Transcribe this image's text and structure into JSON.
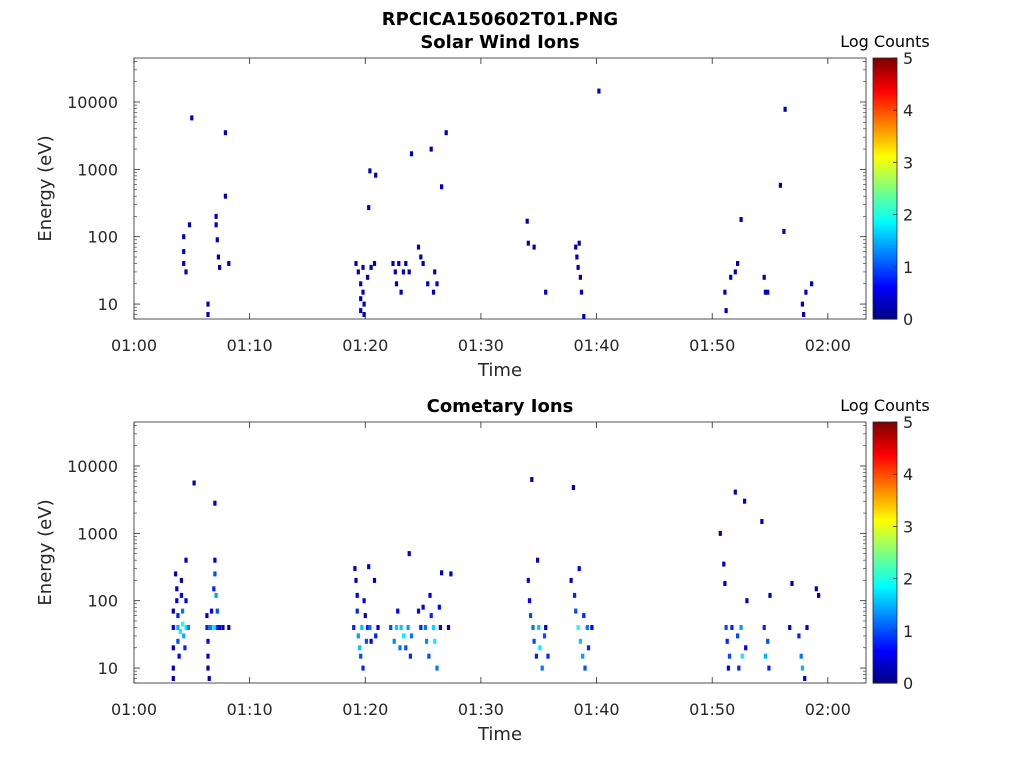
{
  "figure_title": "RPCICA150602T01.PNG",
  "colorscale": [
    "#00007f",
    "#0000ff",
    "#007fff",
    "#00ffff",
    "#7fff7f",
    "#ffff00",
    "#ff7f00",
    "#ff0000",
    "#7f0000"
  ],
  "chart_data": [
    {
      "type": "heatmap",
      "title": "Solar Wind Ions",
      "xlabel": "Time",
      "ylabel": "Energy (eV)",
      "x_ticks": [
        "01:00",
        "01:10",
        "01:20",
        "01:30",
        "01:40",
        "01:50",
        "02:00"
      ],
      "x_range_min": [
        0,
        63.3
      ],
      "y_scale": "log",
      "y_ticks": [
        10,
        100,
        1000,
        10000
      ],
      "y_range": [
        6,
        45000
      ],
      "colorbar": {
        "label": "Log Counts",
        "range": [
          0,
          5
        ],
        "ticks": [
          0,
          1,
          2,
          3,
          4,
          5
        ]
      },
      "points": [
        [
          4.3,
          100,
          0.3
        ],
        [
          4.3,
          60,
          0.3
        ],
        [
          4.3,
          40,
          0.3
        ],
        [
          4.5,
          30,
          0.3
        ],
        [
          4.8,
          150,
          0.3
        ],
        [
          5.0,
          5800,
          0.3
        ],
        [
          6.4,
          10,
          0.3
        ],
        [
          6.4,
          7,
          0.3
        ],
        [
          7.1,
          200,
          0.3
        ],
        [
          7.1,
          150,
          0.3
        ],
        [
          7.2,
          90,
          0.3
        ],
        [
          7.3,
          50,
          0.3
        ],
        [
          7.4,
          35,
          0.3
        ],
        [
          7.9,
          400,
          0.3
        ],
        [
          7.9,
          3500,
          0.3
        ],
        [
          8.2,
          40,
          0.3
        ],
        [
          19.2,
          40,
          0.3
        ],
        [
          19.4,
          30,
          0.3
        ],
        [
          19.6,
          20,
          0.3
        ],
        [
          19.6,
          12,
          0.3
        ],
        [
          19.6,
          8,
          0.3
        ],
        [
          19.8,
          35,
          0.3
        ],
        [
          19.8,
          15,
          0.3
        ],
        [
          19.9,
          10,
          0.3
        ],
        [
          19.9,
          7,
          0.3
        ],
        [
          20.2,
          25,
          0.3
        ],
        [
          20.3,
          270,
          0.3
        ],
        [
          20.4,
          950,
          0.3
        ],
        [
          20.5,
          35,
          0.3
        ],
        [
          20.8,
          40,
          0.3
        ],
        [
          20.9,
          820,
          0.3
        ],
        [
          22.4,
          40,
          0.3
        ],
        [
          22.6,
          30,
          0.3
        ],
        [
          22.7,
          20,
          0.3
        ],
        [
          22.9,
          40,
          0.3
        ],
        [
          23.1,
          15,
          0.3
        ],
        [
          23.3,
          30,
          0.3
        ],
        [
          23.5,
          40,
          0.3
        ],
        [
          23.8,
          30,
          0.3
        ],
        [
          24.0,
          1700,
          0.3
        ],
        [
          24.6,
          70,
          0.3
        ],
        [
          24.8,
          50,
          0.3
        ],
        [
          25.0,
          40,
          0.3
        ],
        [
          25.4,
          20,
          0.3
        ],
        [
          25.7,
          2000,
          0.3
        ],
        [
          25.9,
          15,
          0.3
        ],
        [
          26.0,
          30,
          0.3
        ],
        [
          26.2,
          20,
          0.3
        ],
        [
          26.6,
          550,
          0.3
        ],
        [
          27.0,
          3500,
          0.3
        ],
        [
          34.0,
          170,
          0.3
        ],
        [
          34.1,
          80,
          0.3
        ],
        [
          34.6,
          70,
          0.3
        ],
        [
          35.6,
          15,
          0.3
        ],
        [
          38.2,
          70,
          0.3
        ],
        [
          38.3,
          50,
          0.3
        ],
        [
          38.4,
          35,
          0.3
        ],
        [
          38.5,
          80,
          0.3
        ],
        [
          38.6,
          25,
          0.3
        ],
        [
          38.7,
          15,
          0.3
        ],
        [
          38.9,
          6,
          0.3
        ],
        [
          40.2,
          14500,
          0.3
        ],
        [
          51.1,
          15,
          0.3
        ],
        [
          51.2,
          8,
          0.3
        ],
        [
          51.6,
          25,
          0.3
        ],
        [
          52.0,
          30,
          0.3
        ],
        [
          52.2,
          40,
          0.3
        ],
        [
          52.5,
          180,
          0.3
        ],
        [
          54.5,
          25,
          0.3
        ],
        [
          54.6,
          15,
          0.3
        ],
        [
          54.8,
          15,
          0.3
        ],
        [
          55.9,
          580,
          0.3
        ],
        [
          56.2,
          120,
          0.3
        ],
        [
          56.3,
          7800,
          0.3
        ],
        [
          57.8,
          10,
          0.3
        ],
        [
          57.9,
          7,
          0.3
        ],
        [
          58.1,
          15,
          0.3
        ],
        [
          58.6,
          20,
          0.3
        ]
      ]
    },
    {
      "type": "heatmap",
      "title": "Cometary Ions",
      "xlabel": "Time",
      "ylabel": "Energy (eV)",
      "x_ticks": [
        "01:00",
        "01:10",
        "01:20",
        "01:30",
        "01:40",
        "01:50",
        "02:00"
      ],
      "x_range_min": [
        0,
        63.3
      ],
      "y_scale": "log",
      "y_ticks": [
        10,
        100,
        1000,
        10000
      ],
      "y_range": [
        6,
        45000
      ],
      "colorbar": {
        "label": "Log Counts",
        "range": [
          0,
          5
        ],
        "ticks": [
          0,
          1,
          2,
          3,
          4,
          5
        ]
      },
      "points": [
        [
          3.4,
          70,
          0.3
        ],
        [
          3.4,
          40,
          0.6
        ],
        [
          3.4,
          20,
          0.4
        ],
        [
          3.4,
          10,
          0.3
        ],
        [
          3.4,
          7,
          0.3
        ],
        [
          3.6,
          250,
          0.3
        ],
        [
          3.7,
          150,
          0.3
        ],
        [
          3.7,
          100,
          0.5
        ],
        [
          3.8,
          60,
          0.8
        ],
        [
          3.8,
          40,
          1.5
        ],
        [
          3.8,
          25,
          1.0
        ],
        [
          3.9,
          15,
          0.6
        ],
        [
          4.0,
          35,
          1.8
        ],
        [
          4.1,
          200,
          0.3
        ],
        [
          4.1,
          120,
          0.6
        ],
        [
          4.2,
          70,
          1.2
        ],
        [
          4.2,
          45,
          2.0
        ],
        [
          4.3,
          30,
          1.5
        ],
        [
          4.4,
          20,
          0.8
        ],
        [
          4.5,
          400,
          0.3
        ],
        [
          4.5,
          100,
          0.5
        ],
        [
          4.5,
          40,
          1.8
        ],
        [
          4.7,
          40,
          1.2
        ],
        [
          5.2,
          5600,
          0.3
        ],
        [
          6.3,
          60,
          0.4
        ],
        [
          6.3,
          40,
          0.8
        ],
        [
          6.4,
          25,
          0.6
        ],
        [
          6.4,
          15,
          0.5
        ],
        [
          6.4,
          10,
          0.3
        ],
        [
          6.5,
          7,
          0.3
        ],
        [
          6.6,
          40,
          1.2
        ],
        [
          6.7,
          70,
          0.6
        ],
        [
          6.9,
          150,
          0.8
        ],
        [
          6.9,
          40,
          1.8
        ],
        [
          7.0,
          400,
          0.4
        ],
        [
          7.0,
          250,
          1.0
        ],
        [
          7.0,
          2800,
          0.3
        ],
        [
          7.1,
          120,
          1.4
        ],
        [
          7.2,
          70,
          1.0
        ],
        [
          7.2,
          40,
          0.8
        ],
        [
          7.4,
          40,
          0.5
        ],
        [
          7.7,
          40,
          0.3
        ],
        [
          8.2,
          40,
          0.3
        ],
        [
          19.0,
          40,
          0.8
        ],
        [
          19.1,
          300,
          0.3
        ],
        [
          19.2,
          200,
          0.3
        ],
        [
          19.3,
          120,
          0.5
        ],
        [
          19.3,
          70,
          0.8
        ],
        [
          19.4,
          30,
          1.4
        ],
        [
          19.5,
          20,
          1.6
        ],
        [
          19.6,
          15,
          1.0
        ],
        [
          19.7,
          40,
          1.6
        ],
        [
          19.8,
          10,
          0.8
        ],
        [
          19.9,
          100,
          0.6
        ],
        [
          20.0,
          60,
          0.4
        ],
        [
          20.1,
          25,
          1.0
        ],
        [
          20.2,
          40,
          0.8
        ],
        [
          20.3,
          320,
          0.3
        ],
        [
          20.4,
          40,
          1.2
        ],
        [
          20.5,
          25,
          0.6
        ],
        [
          20.8,
          200,
          0.3
        ],
        [
          20.9,
          30,
          0.8
        ],
        [
          21.1,
          40,
          0.6
        ],
        [
          22.2,
          40,
          1.0
        ],
        [
          22.5,
          25,
          1.3
        ],
        [
          22.7,
          40,
          1.6
        ],
        [
          22.8,
          70,
          0.6
        ],
        [
          23.0,
          20,
          1.2
        ],
        [
          23.1,
          40,
          1.6
        ],
        [
          23.3,
          30,
          1.8
        ],
        [
          23.5,
          20,
          1.0
        ],
        [
          23.7,
          40,
          1.4
        ],
        [
          23.8,
          500,
          0.3
        ],
        [
          23.9,
          15,
          0.8
        ],
        [
          24.0,
          30,
          1.2
        ],
        [
          24.6,
          70,
          0.6
        ],
        [
          24.8,
          40,
          0.8
        ],
        [
          25.0,
          80,
          0.5
        ],
        [
          25.2,
          40,
          1.2
        ],
        [
          25.3,
          25,
          1.3
        ],
        [
          25.5,
          15,
          1.0
        ],
        [
          25.6,
          120,
          0.5
        ],
        [
          25.7,
          60,
          0.8
        ],
        [
          25.9,
          40,
          1.7
        ],
        [
          26.0,
          25,
          1.8
        ],
        [
          26.2,
          10,
          1.2
        ],
        [
          26.4,
          80,
          0.6
        ],
        [
          26.5,
          40,
          0.6
        ],
        [
          26.6,
          260,
          0.3
        ],
        [
          27.2,
          40,
          0.3
        ],
        [
          27.4,
          250,
          0.3
        ],
        [
          34.1,
          200,
          0.6
        ],
        [
          34.2,
          100,
          0.6
        ],
        [
          34.3,
          60,
          1.0
        ],
        [
          34.4,
          6300,
          0.3
        ],
        [
          34.5,
          40,
          1.2
        ],
        [
          34.6,
          25,
          1.0
        ],
        [
          34.8,
          15,
          0.8
        ],
        [
          34.9,
          400,
          0.3
        ],
        [
          35.0,
          40,
          1.6
        ],
        [
          35.1,
          20,
          1.8
        ],
        [
          35.3,
          10,
          1.2
        ],
        [
          35.5,
          30,
          1.0
        ],
        [
          35.6,
          40,
          0.5
        ],
        [
          35.8,
          15,
          0.8
        ],
        [
          37.8,
          200,
          0.4
        ],
        [
          38.0,
          4800,
          0.3
        ],
        [
          38.1,
          120,
          0.8
        ],
        [
          38.2,
          70,
          1.0
        ],
        [
          38.4,
          40,
          2.0
        ],
        [
          38.5,
          300,
          0.5
        ],
        [
          38.6,
          25,
          1.6
        ],
        [
          38.8,
          15,
          1.4
        ],
        [
          38.9,
          60,
          0.8
        ],
        [
          39.0,
          10,
          1.0
        ],
        [
          39.2,
          40,
          1.2
        ],
        [
          39.3,
          20,
          0.8
        ],
        [
          39.6,
          40,
          0.5
        ],
        [
          50.7,
          1000,
          0.3
        ],
        [
          51.0,
          350,
          0.3
        ],
        [
          51.1,
          180,
          0.3
        ],
        [
          51.2,
          40,
          1.0
        ],
        [
          51.3,
          25,
          0.8
        ],
        [
          51.4,
          10,
          0.6
        ],
        [
          51.5,
          15,
          1.0
        ],
        [
          51.7,
          40,
          0.8
        ],
        [
          52.0,
          4100,
          0.3
        ],
        [
          52.2,
          30,
          1.0
        ],
        [
          52.3,
          10,
          0.8
        ],
        [
          52.5,
          40,
          1.4
        ],
        [
          52.6,
          15,
          1.8
        ],
        [
          52.8,
          3000,
          0.3
        ],
        [
          52.9,
          20,
          0.6
        ],
        [
          53.0,
          100,
          0.3
        ],
        [
          54.3,
          1500,
          0.3
        ],
        [
          54.5,
          40,
          0.8
        ],
        [
          54.6,
          15,
          1.5
        ],
        [
          54.8,
          25,
          1.0
        ],
        [
          54.9,
          10,
          0.8
        ],
        [
          55.0,
          120,
          0.3
        ],
        [
          56.7,
          40,
          0.5
        ],
        [
          56.9,
          180,
          0.3
        ],
        [
          57.5,
          30,
          0.8
        ],
        [
          57.7,
          15,
          1.2
        ],
        [
          57.8,
          10,
          1.5
        ],
        [
          58.0,
          7,
          0.5
        ],
        [
          58.2,
          40,
          0.3
        ],
        [
          59.0,
          150,
          0.3
        ],
        [
          59.2,
          120,
          0.3
        ]
      ]
    }
  ]
}
